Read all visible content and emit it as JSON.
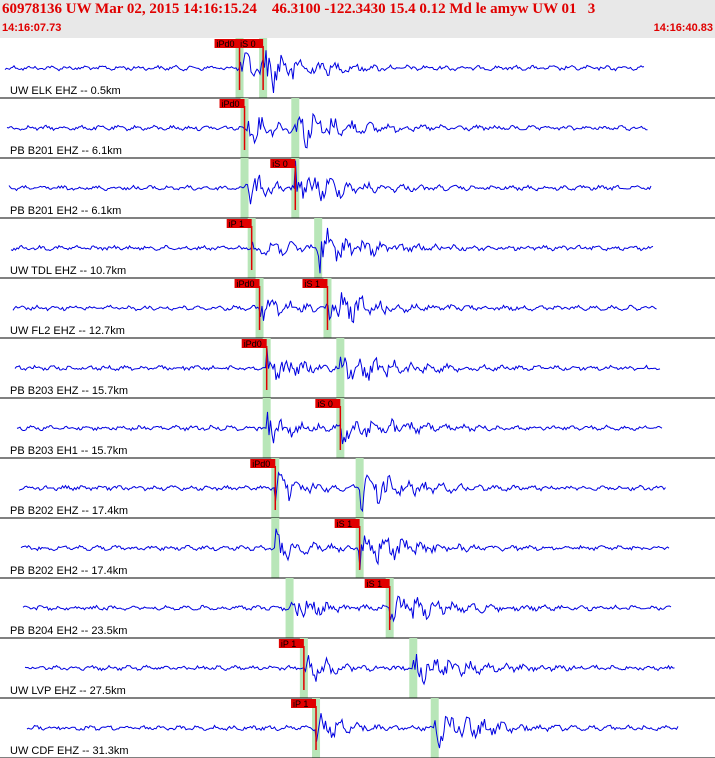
{
  "header": {
    "title": "60978136 UW Mar 02, 2015 14:16:15.24    46.3100 -122.3430 15.4 0.12 Md le amyw UW 01   3",
    "start_time": "14:16:07.73",
    "end_time": "14:16:40.83"
  },
  "colors": {
    "trace": "#0000e0",
    "pick": "#e00000",
    "band": "#b8e6b8",
    "title": "#e00000"
  },
  "traces": [
    {
      "label": "UW ELK EHZ -- 0.5km",
      "picks": [
        "iPd0",
        "iS 0"
      ],
      "p": 0.335,
      "s": 0.368
    },
    {
      "label": "PB B201 EHZ -- 6.1km",
      "picks": [
        "iPd0"
      ],
      "p": 0.342,
      "s": 0.413
    },
    {
      "label": "PB B201 EH2 -- 6.1km",
      "picks": [
        "iS 0"
      ],
      "p": 0.342,
      "s": 0.413
    },
    {
      "label": "UW TDL EHZ -- 10.7km",
      "picks": [
        "iP 1"
      ],
      "p": 0.352,
      "s": 0.445
    },
    {
      "label": "UW FL2 EHZ -- 12.7km",
      "picks": [
        "iPd0",
        "iS 1"
      ],
      "p": 0.363,
      "s": 0.458
    },
    {
      "label": "PB B203 EHZ -- 15.7km",
      "picks": [
        "iPd0"
      ],
      "p": 0.373,
      "s": 0.476
    },
    {
      "label": "PB B203 EH1 -- 15.7km",
      "picks": [
        "iS 0"
      ],
      "p": 0.373,
      "s": 0.476
    },
    {
      "label": "PB B202 EHZ -- 17.4km",
      "picks": [
        "iPd0"
      ],
      "p": 0.385,
      "s": 0.503
    },
    {
      "label": "PB B202 EH2 -- 17.4km",
      "picks": [
        "iS 1"
      ],
      "p": 0.385,
      "s": 0.503
    },
    {
      "label": "PB B204 EH2 -- 23.5km",
      "picks": [
        "iS 1"
      ],
      "p": 0.405,
      "s": 0.545
    },
    {
      "label": "UW LVP EHZ -- 27.5km",
      "picks": [
        "iP 1"
      ],
      "p": 0.425,
      "s": 0.578
    },
    {
      "label": "UW CDF EHZ -- 31.3km",
      "picks": [
        "iP 1"
      ],
      "p": 0.442,
      "s": 0.608
    }
  ]
}
